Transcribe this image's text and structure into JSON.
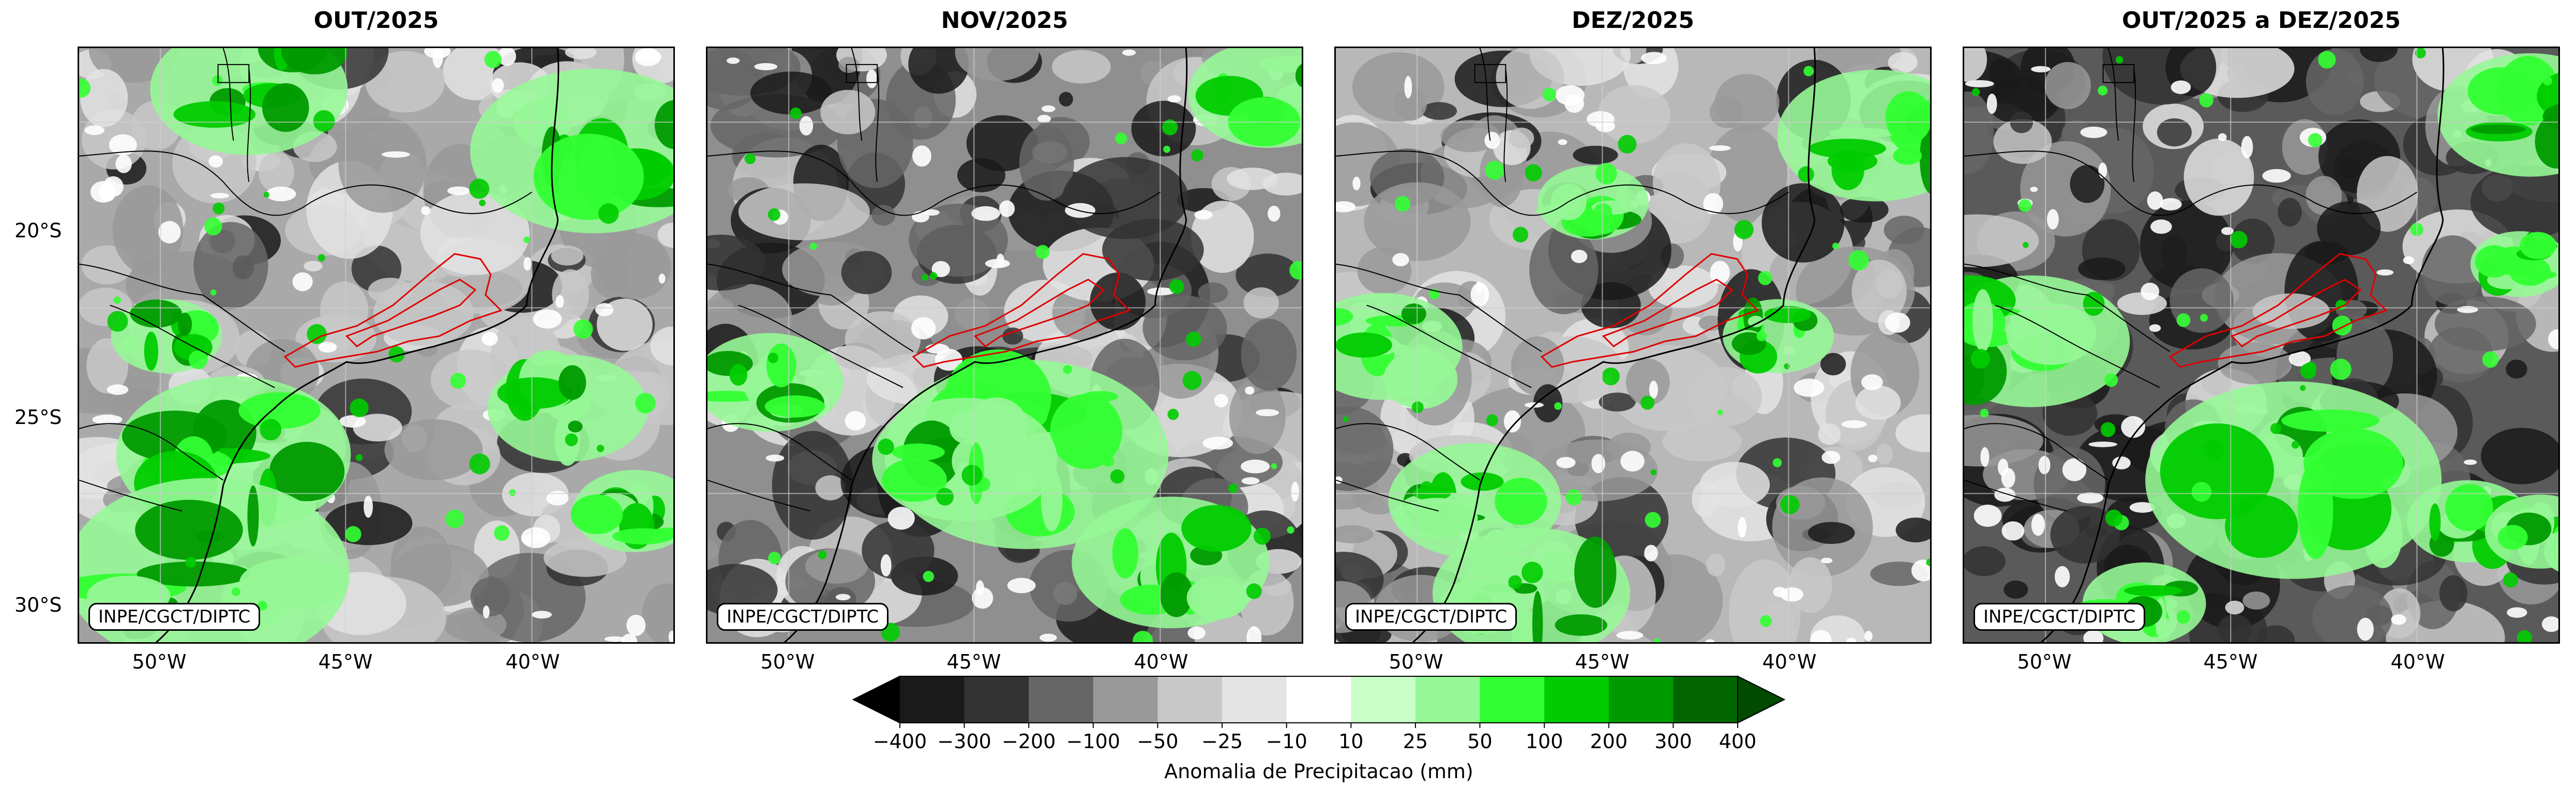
{
  "panels": [
    {
      "title": "OUT/2025",
      "credit": "INPE/CGCT/DIPTC"
    },
    {
      "title": "NOV/2025",
      "credit": "INPE/CGCT/DIPTC"
    },
    {
      "title": "DEZ/2025",
      "credit": "INPE/CGCT/DIPTC"
    },
    {
      "title": "OUT/2025 a DEZ/2025",
      "credit": "INPE/CGCT/DIPTC"
    }
  ],
  "axes": {
    "lat_labels": [
      "20°S",
      "25°S",
      "30°S"
    ],
    "lon_labels": [
      "50°W",
      "45°W",
      "40°W"
    ]
  },
  "colorbar": {
    "label": "Anomalia de Precipitacao (mm)",
    "ticks": [
      "−400",
      "−300",
      "−200",
      "−100",
      "−50",
      "−25",
      "−10",
      "10",
      "25",
      "50",
      "100",
      "200",
      "300",
      "400"
    ],
    "colors": [
      "#000000",
      "#1a1a1a",
      "#333333",
      "#666666",
      "#999999",
      "#c8c8c8",
      "#e3e3e3",
      "#ffffff",
      "#c8ffc8",
      "#96f796",
      "#32ff32",
      "#00cc00",
      "#009a00",
      "#006400",
      "#004b00"
    ]
  },
  "map_colors": {
    "state_borders": "#000000",
    "highlight_region": "#e00000",
    "gridlines": "#cfcfcf"
  }
}
